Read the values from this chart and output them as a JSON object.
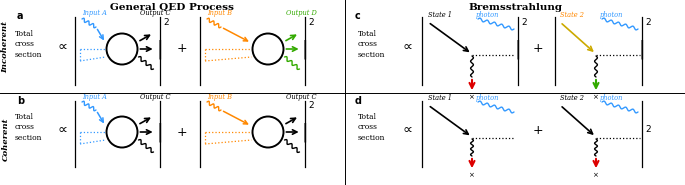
{
  "title_left": "General QED Process",
  "title_right": "Bremsstrahlung",
  "label_a": "a",
  "label_b": "b",
  "label_c": "c",
  "label_d": "d",
  "row1_label": "Incoherent",
  "row2_label": "Coherent",
  "text_total": "Total\ncross\nsection",
  "proportional": "∝",
  "plus": "+",
  "power2": "2",
  "input_A": "Input A",
  "output_C": "Output C",
  "input_B": "Input B",
  "output_D": "Output D",
  "output_C2": "Output C",
  "state1": "State 1",
  "state2": "State 2",
  "photon": "photon",
  "color_blue": "#3399FF",
  "color_orange": "#FF8800",
  "color_green": "#33AA00",
  "color_black": "#000000",
  "color_red": "#DD0000",
  "color_yellow": "#CCAA00",
  "color_bg": "#FFFFFF"
}
